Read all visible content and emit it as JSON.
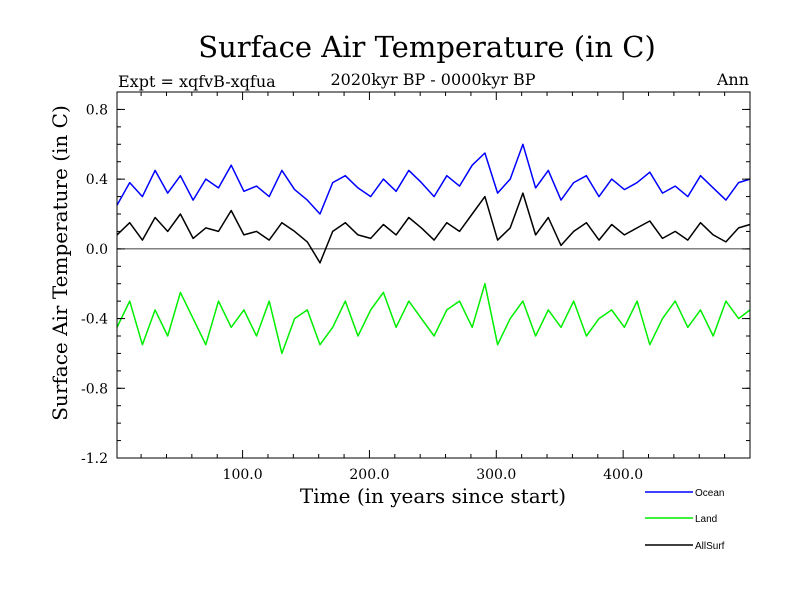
{
  "chart_data": {
    "type": "line",
    "title": "Surface Air Temperature (in C)",
    "subtitle": "2020kyr BP - 0000kyr BP",
    "left_label": "Expt = xqfvB-xqfua",
    "right_label": "Ann",
    "xlabel": "Time (in years since start)",
    "ylabel": "Surface Air Temperature (in C)",
    "xlim": [
      1,
      500
    ],
    "ylim": [
      -1.2,
      0.9
    ],
    "x_ticks": [
      100,
      200,
      300,
      400
    ],
    "x_tick_labels": [
      "100.0",
      "200.0",
      "300.0",
      "400.0"
    ],
    "y_ticks": [
      -1.2,
      -0.8,
      -0.4,
      0.0,
      0.4,
      0.8
    ],
    "y_tick_labels": [
      "-1.2",
      "-0.8",
      "-0.4",
      "0.0",
      "0.4",
      "0.8"
    ],
    "reference_line": 0.0,
    "legend_position": "bottom-right",
    "series": [
      {
        "name": "Ocean",
        "color": "#0000ff",
        "x": [
          1,
          11,
          21,
          31,
          41,
          51,
          61,
          71,
          81,
          91,
          101,
          111,
          121,
          131,
          141,
          151,
          161,
          171,
          181,
          191,
          201,
          211,
          221,
          231,
          241,
          251,
          261,
          271,
          281,
          291,
          301,
          311,
          321,
          331,
          341,
          351,
          361,
          371,
          381,
          391,
          401,
          411,
          421,
          431,
          441,
          451,
          461,
          471,
          481,
          491,
          500
        ],
        "values": [
          0.25,
          0.38,
          0.3,
          0.45,
          0.32,
          0.42,
          0.28,
          0.4,
          0.35,
          0.48,
          0.33,
          0.36,
          0.3,
          0.45,
          0.34,
          0.28,
          0.2,
          0.38,
          0.42,
          0.35,
          0.3,
          0.4,
          0.33,
          0.45,
          0.38,
          0.3,
          0.42,
          0.36,
          0.48,
          0.55,
          0.32,
          0.4,
          0.6,
          0.35,
          0.45,
          0.28,
          0.38,
          0.42,
          0.3,
          0.4,
          0.34,
          0.38,
          0.44,
          0.32,
          0.36,
          0.3,
          0.42,
          0.35,
          0.28,
          0.38,
          0.4
        ]
      },
      {
        "name": "Land",
        "color": "#00ee00",
        "x": [
          1,
          11,
          21,
          31,
          41,
          51,
          61,
          71,
          81,
          91,
          101,
          111,
          121,
          131,
          141,
          151,
          161,
          171,
          181,
          191,
          201,
          211,
          221,
          231,
          241,
          251,
          261,
          271,
          281,
          291,
          301,
          311,
          321,
          331,
          341,
          351,
          361,
          371,
          381,
          391,
          401,
          411,
          421,
          431,
          441,
          451,
          461,
          471,
          481,
          491,
          500
        ],
        "values": [
          -0.45,
          -0.3,
          -0.55,
          -0.35,
          -0.5,
          -0.25,
          -0.4,
          -0.55,
          -0.3,
          -0.45,
          -0.35,
          -0.5,
          -0.3,
          -0.6,
          -0.4,
          -0.35,
          -0.55,
          -0.45,
          -0.3,
          -0.5,
          -0.35,
          -0.25,
          -0.45,
          -0.3,
          -0.4,
          -0.5,
          -0.35,
          -0.3,
          -0.45,
          -0.2,
          -0.55,
          -0.4,
          -0.3,
          -0.5,
          -0.35,
          -0.45,
          -0.3,
          -0.5,
          -0.4,
          -0.35,
          -0.45,
          -0.3,
          -0.55,
          -0.4,
          -0.3,
          -0.45,
          -0.35,
          -0.5,
          -0.3,
          -0.4,
          -0.35
        ]
      },
      {
        "name": "AllSurf",
        "color": "#000000",
        "x": [
          1,
          11,
          21,
          31,
          41,
          51,
          61,
          71,
          81,
          91,
          101,
          111,
          121,
          131,
          141,
          151,
          161,
          171,
          181,
          191,
          201,
          211,
          221,
          231,
          241,
          251,
          261,
          271,
          281,
          291,
          301,
          311,
          321,
          331,
          341,
          351,
          361,
          371,
          381,
          391,
          401,
          411,
          421,
          431,
          441,
          451,
          461,
          471,
          481,
          491,
          500
        ],
        "values": [
          0.08,
          0.15,
          0.05,
          0.18,
          0.1,
          0.2,
          0.06,
          0.12,
          0.1,
          0.22,
          0.08,
          0.1,
          0.05,
          0.15,
          0.1,
          0.04,
          -0.08,
          0.1,
          0.15,
          0.08,
          0.06,
          0.14,
          0.08,
          0.18,
          0.12,
          0.05,
          0.15,
          0.1,
          0.2,
          0.3,
          0.05,
          0.12,
          0.32,
          0.08,
          0.18,
          0.02,
          0.1,
          0.15,
          0.05,
          0.14,
          0.08,
          0.12,
          0.16,
          0.06,
          0.1,
          0.05,
          0.15,
          0.08,
          0.04,
          0.12,
          0.14
        ]
      }
    ]
  }
}
